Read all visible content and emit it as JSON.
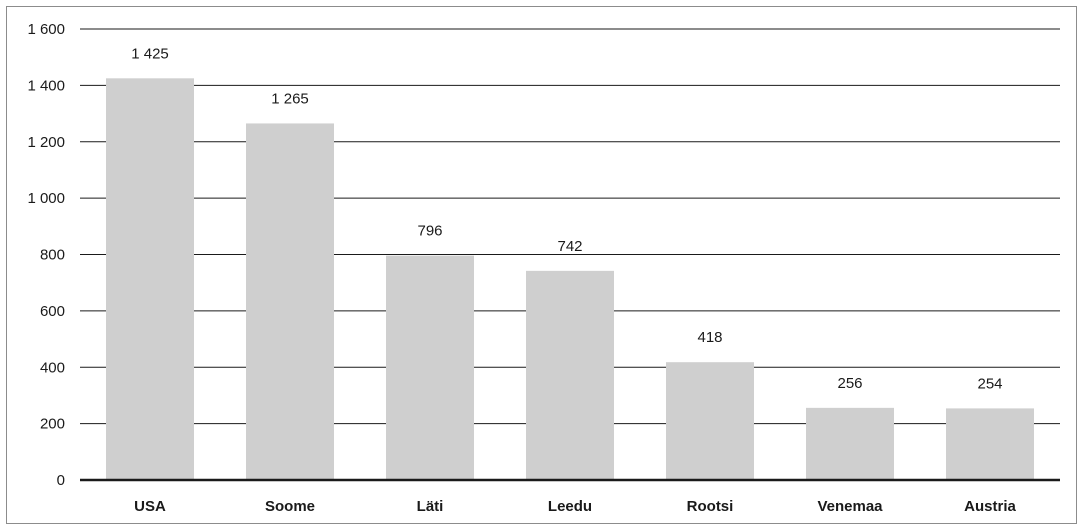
{
  "chart_data": {
    "type": "bar",
    "categories": [
      "USA",
      "Soome",
      "Läti",
      "Leedu",
      "Rootsi",
      "Venemaa",
      "Austria"
    ],
    "values": [
      1425,
      1265,
      796,
      742,
      418,
      256,
      254
    ],
    "value_labels": [
      "1 425",
      "1 265",
      "796",
      "742",
      "418",
      "256",
      "254"
    ],
    "ylim": [
      0,
      1600
    ],
    "yticks": [
      0,
      200,
      400,
      600,
      800,
      1000,
      1200,
      1400,
      1600
    ],
    "ytick_labels": [
      "0",
      "200",
      "400",
      "600",
      "800",
      "1 000",
      "1 200",
      "1 400",
      "1 600"
    ],
    "grid": true,
    "legend": "none",
    "colors": {
      "bar": "#cfcfcf",
      "grid": "#1a1a1a",
      "axis": "#1a1a1a",
      "frame": "#8c8c8c"
    }
  }
}
